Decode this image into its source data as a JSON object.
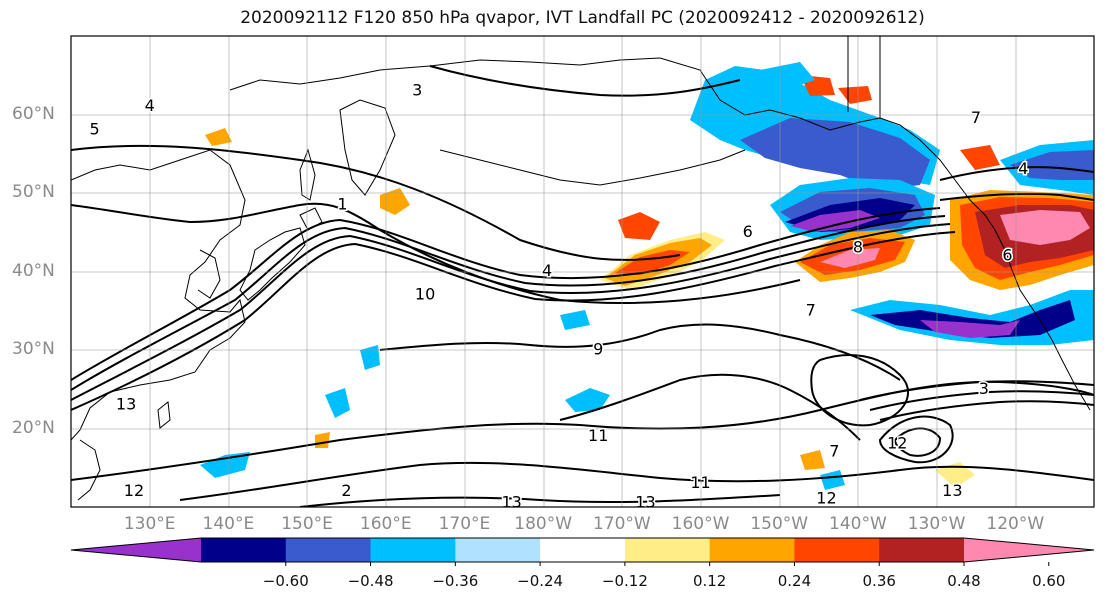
{
  "title": "2020092112 F120 850 hPa qvapor, IVT Landfall PC (2020092412 - 2020092612)",
  "map": {
    "lat_labels": [
      {
        "text": "60°N",
        "lat": 60
      },
      {
        "text": "50°N",
        "lat": 50
      },
      {
        "text": "40°N",
        "lat": 40
      },
      {
        "text": "30°N",
        "lat": 30
      },
      {
        "text": "20°N",
        "lat": 20
      }
    ],
    "lon_labels": [
      {
        "text": "130°E",
        "lon": 130
      },
      {
        "text": "140°E",
        "lon": 140
      },
      {
        "text": "150°E",
        "lon": 150
      },
      {
        "text": "160°E",
        "lon": 160
      },
      {
        "text": "170°E",
        "lon": 170
      },
      {
        "text": "180°W",
        "lon": 180
      },
      {
        "text": "170°W",
        "lon": 190
      },
      {
        "text": "160°W",
        "lon": 200
      },
      {
        "text": "150°W",
        "lon": 210
      },
      {
        "text": "140°W",
        "lon": 220
      },
      {
        "text": "130°W",
        "lon": 230
      },
      {
        "text": "120°W",
        "lon": 240
      }
    ],
    "lon_range": [
      120,
      250
    ],
    "lat_range": [
      10,
      70
    ],
    "grid": true,
    "contour_labels": [
      {
        "text": "4",
        "lon": 180.5,
        "lat": 40
      },
      {
        "text": "10",
        "lon": 165,
        "lat": 37
      },
      {
        "text": "8",
        "lon": 220,
        "lat": 43
      },
      {
        "text": "6",
        "lon": 206,
        "lat": 45
      },
      {
        "text": "7",
        "lon": 214,
        "lat": 35
      },
      {
        "text": "9",
        "lon": 187,
        "lat": 30
      },
      {
        "text": "11",
        "lon": 187,
        "lat": 19
      },
      {
        "text": "11",
        "lon": 200,
        "lat": 13
      },
      {
        "text": "13",
        "lon": 127,
        "lat": 23
      },
      {
        "text": "12",
        "lon": 128,
        "lat": 12
      },
      {
        "text": "13",
        "lon": 232,
        "lat": 12
      },
      {
        "text": "12",
        "lon": 216,
        "lat": 11
      },
      {
        "text": "3",
        "lon": 236,
        "lat": 25
      },
      {
        "text": "12",
        "lon": 225,
        "lat": 18
      },
      {
        "text": "7",
        "lon": 217,
        "lat": 17
      },
      {
        "text": "4",
        "lon": 241,
        "lat": 53
      },
      {
        "text": "6",
        "lon": 239,
        "lat": 42
      },
      {
        "text": "4",
        "lon": 130,
        "lat": 61
      },
      {
        "text": "5",
        "lon": 123,
        "lat": 58
      },
      {
        "text": "1",
        "lon": 154.5,
        "lat": 48.5
      },
      {
        "text": "3",
        "lon": 164,
        "lat": 63
      },
      {
        "text": "2",
        "lon": 155,
        "lat": 12
      },
      {
        "text": "13",
        "lon": 176,
        "lat": 10.5
      },
      {
        "text": "13",
        "lon": 193,
        "lat": 10.5
      },
      {
        "text": "7",
        "lon": 235,
        "lat": 59.5
      }
    ]
  },
  "colorbar": {
    "colors": [
      "#9932cc",
      "#00008b",
      "#3a5bcd",
      "#00bfff",
      "#b0e2ff",
      "#ffffff",
      "#ffee88",
      "#ffa500",
      "#ff4500",
      "#b22222",
      "#ff88b0"
    ],
    "tick_labels": [
      "−0.60",
      "−0.48",
      "−0.36",
      "−0.24",
      "−0.12",
      "0.12",
      "0.24",
      "0.36",
      "0.48",
      "0.60"
    ]
  }
}
